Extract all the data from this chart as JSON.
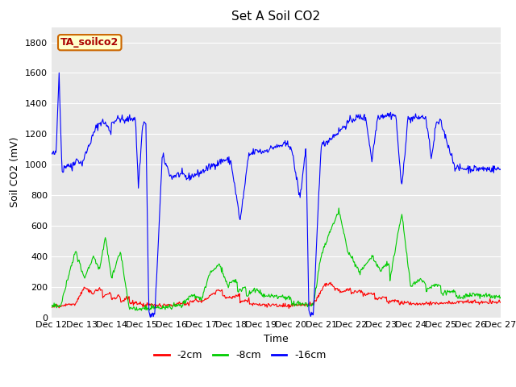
{
  "title": "Set A Soil CO2",
  "ylabel": "Soil CO2 (mV)",
  "xlabel": "Time",
  "legend_label": "TA_soilco2",
  "series_labels": [
    "-2cm",
    "-8cm",
    "-16cm"
  ],
  "series_colors": [
    "#ff0000",
    "#00cc00",
    "#0000ff"
  ],
  "background_color": "#ffffff",
  "plot_bg_color": "#e8e8e8",
  "ylim": [
    0,
    1900
  ],
  "yticks": [
    0,
    200,
    400,
    600,
    800,
    1000,
    1200,
    1400,
    1600,
    1800
  ],
  "x_tick_labels": [
    "Dec 12",
    "Dec 13",
    "Dec 14",
    "Dec 15",
    "Dec 16",
    "Dec 17",
    "Dec 18",
    "Dec 19",
    "Dec 20",
    "Dec 21",
    "Dec 22",
    "Dec 23",
    "Dec 24",
    "Dec 25",
    "Dec 26",
    "Dec 27"
  ],
  "title_fontsize": 11,
  "axis_label_fontsize": 9,
  "tick_fontsize": 8,
  "legend_fontsize": 9
}
